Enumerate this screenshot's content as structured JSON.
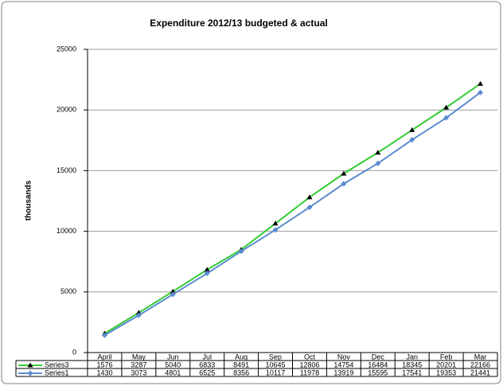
{
  "chart_data": {
    "type": "line",
    "title": "Expenditure 2012/13 budgeted & actual",
    "y_label": "thousands",
    "categories": [
      "April",
      "May",
      "Jun",
      "Jul",
      "Aug",
      "Sep",
      "Oct",
      "Nov",
      "Dec",
      "Jan",
      "Feb",
      "Mar"
    ],
    "series": [
      {
        "name": "Series3",
        "color": "#33cc33",
        "marker": "triangle",
        "marker_color": "#000000",
        "values": [
          1576,
          3287,
          5040,
          6833,
          8491,
          10645,
          12806,
          14754,
          16484,
          18345,
          20201,
          22166
        ]
      },
      {
        "name": "Series1",
        "color": "#5b8bd0",
        "marker": "diamond",
        "marker_color": "#5b8bd0",
        "values": [
          1430,
          3073,
          4801,
          6525,
          8356,
          10117,
          11978,
          13919,
          15595,
          17541,
          19353,
          21441
        ]
      }
    ],
    "ylim": [
      0,
      25000
    ],
    "yticks": [
      0,
      5000,
      10000,
      15000,
      20000,
      25000
    ],
    "grid": true,
    "data_table": true
  }
}
